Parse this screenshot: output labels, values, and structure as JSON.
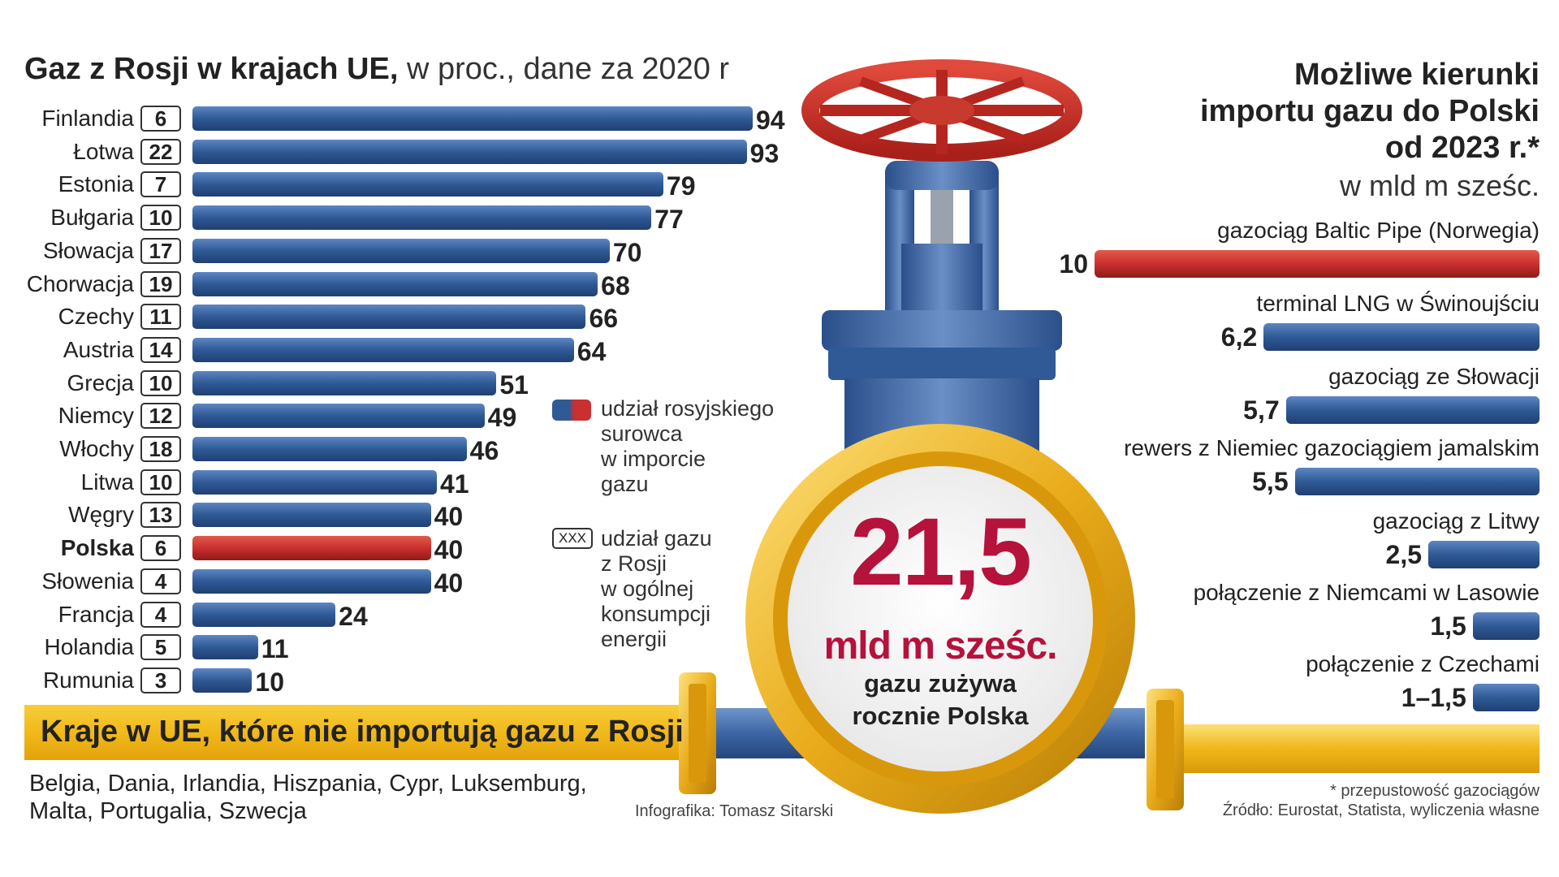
{
  "left": {
    "title_bold": "Gaz z Rosji w krajach UE,",
    "title_rest": " w proc., dane za 2020 r"
  },
  "legend": {
    "share_text": [
      "udział rosyjskiego",
      "surowca",
      "w imporcie",
      "gazu"
    ],
    "xxx_box": "XXX",
    "gas_text": [
      "udział gazu",
      "z Rosji",
      "w ogólnej",
      "konsumpcji",
      "energii"
    ]
  },
  "band": {
    "title": "Kraje w UE, które nie importują gazu z Rosji",
    "countries": "Belgia, Dania, Irlandia, Hiszpania, Cypr, Luksemburg, Malta, Portugalia, Szwecja"
  },
  "credit": "Infografika: Tomasz Sitarski",
  "valve": {
    "number": "21,5",
    "unit": "mld m sześc.",
    "desc_line1": "gazu zużywa",
    "desc_line2": "rocznie Polska"
  },
  "right": {
    "title_lines": [
      "Możliwe kierunki",
      "importu gazu do Polski",
      "od 2023 r.*"
    ],
    "subtitle": "w mld m sześc."
  },
  "footnote": {
    "line1": "* przepustowość gazociągów",
    "line2": "Źródło: Eurostat, Statista, wyliczenia własne"
  },
  "colors": {
    "blue": "#2f5a96",
    "red": "#c93030",
    "yellow": "#f0b718",
    "valve_red": "#b5123c"
  },
  "chart_data": [
    {
      "type": "bar",
      "orientation": "horizontal",
      "title": "Gaz z Rosji w krajach UE, w proc., dane za 2020 r",
      "categories": [
        "Finlandia",
        "Łotwa",
        "Estonia",
        "Bułgaria",
        "Słowacja",
        "Chorwacja",
        "Czechy",
        "Austria",
        "Grecja",
        "Niemcy",
        "Włochy",
        "Litwa",
        "Węgry",
        "Polska",
        "Słowenia",
        "Francja",
        "Holandia",
        "Rumunia"
      ],
      "series": [
        {
          "name": "udział rosyjskiego surowca w imporcie gazu",
          "values": [
            94,
            93,
            79,
            77,
            70,
            68,
            66,
            64,
            51,
            49,
            46,
            41,
            40,
            40,
            40,
            24,
            11,
            10
          ]
        },
        {
          "name": "udział gazu z Rosji w ogólnej konsumpcji energii",
          "values": [
            6,
            22,
            7,
            10,
            17,
            19,
            11,
            14,
            10,
            12,
            18,
            10,
            13,
            6,
            4,
            4,
            5,
            3
          ]
        }
      ],
      "highlight": "Polska",
      "xlim": [
        0,
        94
      ]
    },
    {
      "type": "bar",
      "orientation": "horizontal",
      "title": "Możliwe kierunki importu gazu do Polski od 2023 r.*",
      "subtitle": "w mld m sześc.",
      "categories": [
        "gazociąg Baltic Pipe (Norwegia)",
        "terminal LNG w Świnoujściu",
        "gazociąg ze Słowacji",
        "rewers z Niemiec gazociągiem jamalskim",
        "gazociąg z Litwy",
        "połączenie z Niemcami w Lasowie",
        "połączenie z Czechami"
      ],
      "labels": [
        "10",
        "6,2",
        "5,7",
        "5,5",
        "2,5",
        "1,5",
        "1–1,5"
      ],
      "values": [
        10,
        6.2,
        5.7,
        5.5,
        2.5,
        1.5,
        1.5
      ],
      "highlight": "gazociąg Baltic Pipe (Norwegia)",
      "xlim": [
        0,
        10
      ]
    }
  ]
}
